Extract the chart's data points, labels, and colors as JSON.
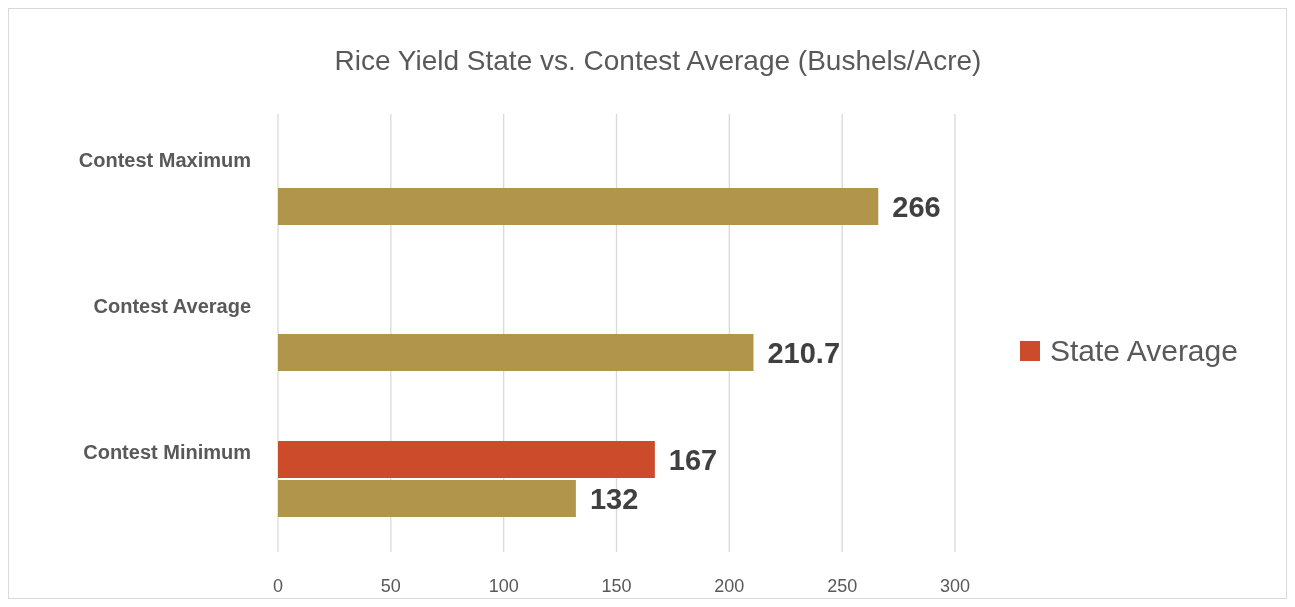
{
  "chart_data": {
    "type": "bar",
    "orientation": "horizontal",
    "title": "Rice Yield State vs. Contest Average (Bushels/Acre)",
    "categories": [
      "Contest Maximum",
      "Contest Average",
      "Contest Minimum"
    ],
    "series": [
      {
        "name": "State Average",
        "color": "#cc4b2a",
        "values": [
          null,
          null,
          167
        ]
      },
      {
        "color": "#b0954a",
        "values": [
          266,
          210.7,
          132
        ]
      }
    ],
    "xlim": [
      0,
      300
    ],
    "xticks": [
      0,
      50,
      100,
      150,
      200,
      250,
      300
    ],
    "grid": "x",
    "legend": "right",
    "data_labels": true
  }
}
